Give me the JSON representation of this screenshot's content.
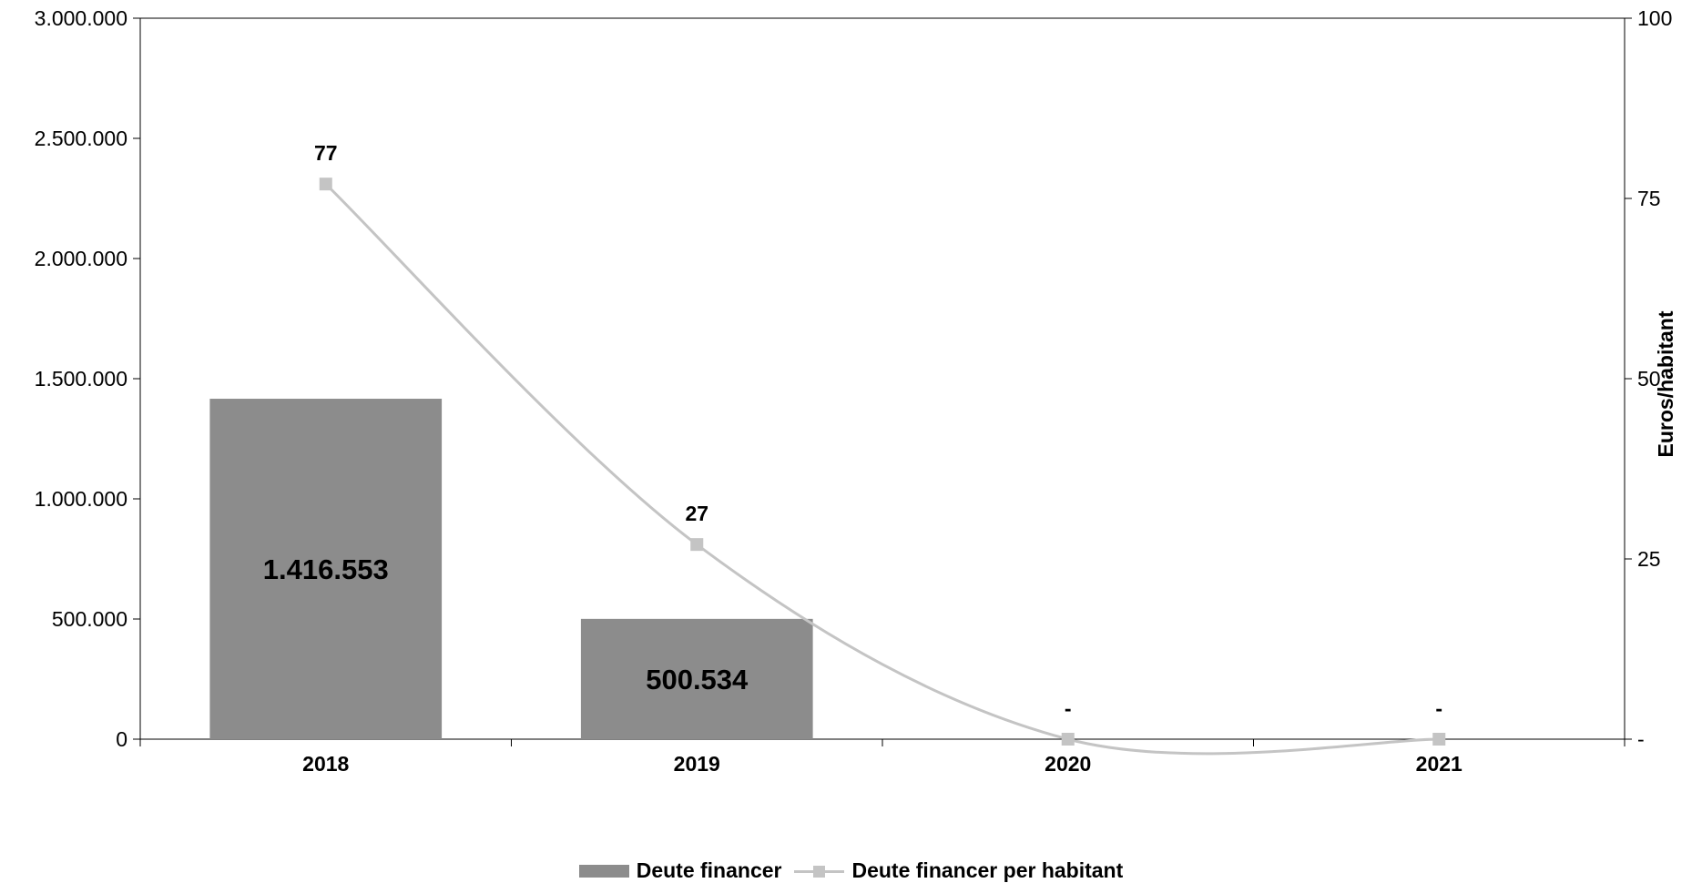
{
  "chart_data": {
    "type": "bar",
    "categories": [
      "2018",
      "2019",
      "2020",
      "2021"
    ],
    "bar_series": {
      "name": "Deute financer",
      "values": [
        1416553,
        500534,
        0,
        0
      ],
      "labels": [
        "1.416.553",
        "500.534",
        "",
        ""
      ],
      "color": "#8c8c8c"
    },
    "line_series": {
      "name": "Deute financer per habitant",
      "values": [
        77,
        27,
        0,
        0
      ],
      "labels": [
        "77",
        "27",
        "-",
        "-"
      ],
      "color": "#c4c4c4"
    },
    "ylim": [
      0,
      3000000
    ],
    "y_ticks": [
      0,
      500000,
      1000000,
      1500000,
      2000000,
      2500000,
      3000000
    ],
    "y_tick_labels": [
      "0",
      "500.000",
      "1.000.000",
      "1.500.000",
      "2.000.000",
      "2.500.000",
      "3.000.000"
    ],
    "y2lim": [
      0,
      100
    ],
    "y2_ticks": [
      0,
      25,
      50,
      75,
      100
    ],
    "y2_tick_labels": [
      "-",
      "25",
      "50",
      "75",
      "100"
    ],
    "y2label": "Euros/habitant",
    "grid": false,
    "legend_position": "bottom"
  }
}
